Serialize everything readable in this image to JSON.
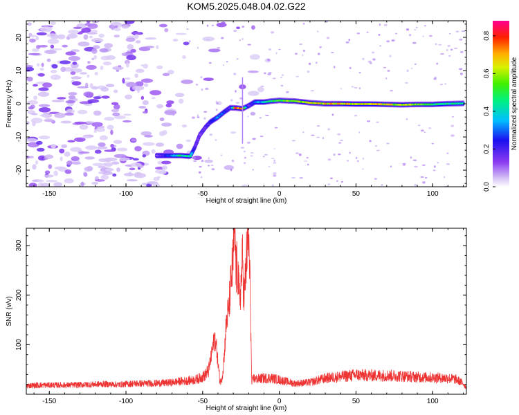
{
  "figure": {
    "title": "KOM5.2025.048.04.02.G22"
  },
  "chart_data": [
    {
      "type": "heatmap",
      "xlabel": "Height of straight line (km)",
      "ylabel": "Frequency (Hz)",
      "xlim": [
        -165,
        122
      ],
      "ylim": [
        -25,
        25
      ],
      "xticks": [
        -150,
        -100,
        -50,
        0,
        50,
        100
      ],
      "yticks": [
        -20,
        -10,
        0,
        10,
        20
      ],
      "colorbar": {
        "label": "Normalized spectral amplitude",
        "range": [
          0.0,
          0.88
        ],
        "ticks": [
          "0.0",
          "0.2",
          "0.4",
          "0.6",
          "0.8"
        ],
        "colormap": "rainbow (white/lavender at 0, purple, blue, cyan, green, yellow, orange, red, magenta at max)"
      },
      "signal_track": {
        "x": [
          -80,
          -72,
          -65,
          -58,
          -55,
          -52,
          -48,
          -45,
          -40,
          -36,
          -32,
          -28,
          -24,
          -20,
          -16,
          -10,
          -5,
          0,
          10,
          20,
          30,
          40,
          50,
          60,
          70,
          80,
          90,
          100,
          110,
          120
        ],
        "frequency": [
          -15.6,
          -15.6,
          -15.6,
          -15.8,
          -13,
          -9.5,
          -7,
          -5.5,
          -4,
          -2.5,
          -1.2,
          -1.3,
          -1.5,
          -0.6,
          0.5,
          0.5,
          0.8,
          1.0,
          0.8,
          0.3,
          0.0,
          0.0,
          -0.1,
          -0.1,
          -0.2,
          -0.3,
          -0.2,
          -0.2,
          0.0,
          0.1
        ],
        "amplitude": [
          0.12,
          0.3,
          0.5,
          0.45,
          0.2,
          0.15,
          0.2,
          0.25,
          0.35,
          0.3,
          0.2,
          0.88,
          0.85,
          0.15,
          0.3,
          0.45,
          0.5,
          0.6,
          0.65,
          0.7,
          0.72,
          0.75,
          0.7,
          0.72,
          0.7,
          0.68,
          0.65,
          0.5,
          0.5,
          0.45
        ]
      },
      "grid": false
    },
    {
      "type": "line",
      "xlabel": "Height of straight line (km)",
      "ylabel": "SNR (v/v)",
      "xlim": [
        -165,
        122
      ],
      "ylim": [
        0,
        335
      ],
      "xticks": [
        -150,
        -100,
        -50,
        0,
        50,
        100
      ],
      "yticks": [
        100,
        200,
        300
      ],
      "series": [
        {
          "color": "#ee3333",
          "x": [
            -165,
            -155,
            -145,
            -135,
            -125,
            -115,
            -105,
            -95,
            -85,
            -75,
            -70,
            -65,
            -60,
            -55,
            -52,
            -50,
            -48,
            -46,
            -44,
            -42,
            -41,
            -40,
            -39,
            -38,
            -37,
            -36,
            -35,
            -34,
            -33,
            -32,
            -31,
            -30,
            -29.5,
            -29,
            -28.5,
            -28,
            -27.5,
            -27,
            -26,
            -25,
            -24,
            -23,
            -22,
            -21,
            -20,
            -19.5,
            -19,
            -18.5,
            -18,
            -17.5,
            -17,
            -15,
            -10,
            -5,
            0,
            10,
            20,
            30,
            40,
            50,
            60,
            70,
            80,
            90,
            100,
            110,
            115,
            120,
            122
          ],
          "values": [
            16,
            17,
            17,
            17,
            18,
            19,
            18,
            20,
            20,
            21,
            22,
            24,
            25,
            27,
            30,
            33,
            37,
            45,
            80,
            110,
            90,
            60,
            30,
            22,
            40,
            70,
            120,
            150,
            160,
            200,
            230,
            260,
            330,
            300,
            270,
            220,
            260,
            230,
            180,
            210,
            260,
            180,
            230,
            280,
            300,
            240,
            200,
            110,
            20,
            25,
            30,
            28,
            30,
            30,
            27,
            20,
            22,
            30,
            33,
            36,
            35,
            35,
            34,
            32,
            31,
            30,
            28,
            20,
            12
          ]
        }
      ],
      "grid": false
    }
  ]
}
